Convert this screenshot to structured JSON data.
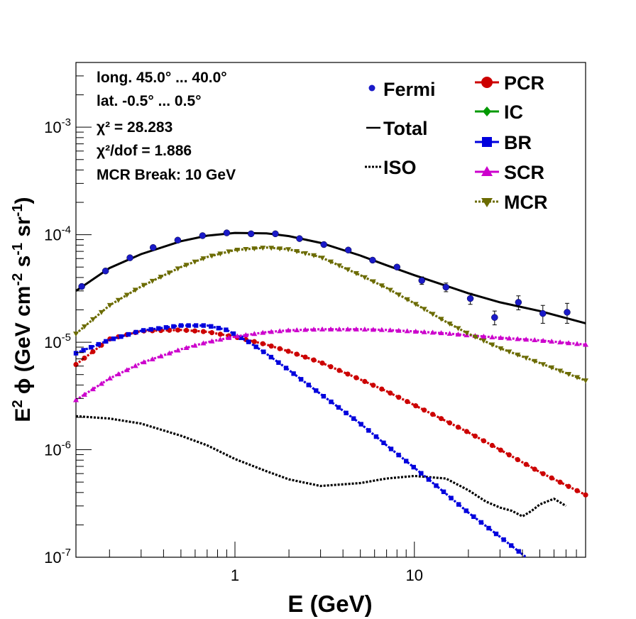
{
  "chart_data": {
    "type": "line",
    "x_scale": "log",
    "y_scale": "log",
    "xlim": [
      0.13,
      90
    ],
    "ylim": [
      1e-07,
      0.004
    ],
    "xlabel": "E (GeV)",
    "ylabel": "E² ϕ (GeV cm⁻² s⁻¹ sr⁻¹)",
    "x_ticks": [
      {
        "value": 1,
        "label": "1"
      },
      {
        "value": 10,
        "label": "10"
      }
    ],
    "y_ticks": [
      {
        "value": 1e-07,
        "base": "10",
        "exp": "-7"
      },
      {
        "value": 1e-06,
        "base": "10",
        "exp": "-6"
      },
      {
        "value": 1e-05,
        "base": "10",
        "exp": "-5"
      },
      {
        "value": 0.0001,
        "base": "10",
        "exp": "-4"
      },
      {
        "value": 0.001,
        "base": "10",
        "exp": "-3"
      }
    ],
    "annotations": [
      "long. 45.0° ... 40.0°",
      "lat. -0.5° ... 0.5°",
      "χ² = 28.283",
      "χ²/dof = 1.886",
      "MCR Break: 10 GeV"
    ],
    "legend_left": [
      "Fermi",
      "Total",
      "ISO"
    ],
    "legend_right": [
      "PCR",
      "IC",
      "BR",
      "SCR",
      "MCR"
    ],
    "fermi": {
      "name": "Fermi",
      "color": "#1a1ac8",
      "points": [
        {
          "x": 0.14,
          "y": 3.3e-05,
          "err": 0
        },
        {
          "x": 0.19,
          "y": 4.6e-05,
          "err": 0
        },
        {
          "x": 0.26,
          "y": 6.1e-05,
          "err": 0
        },
        {
          "x": 0.35,
          "y": 7.6e-05,
          "err": 0
        },
        {
          "x": 0.48,
          "y": 8.9e-05,
          "err": 0
        },
        {
          "x": 0.66,
          "y": 9.8e-05,
          "err": 0
        },
        {
          "x": 0.9,
          "y": 0.000104,
          "err": 0
        },
        {
          "x": 1.23,
          "y": 0.000102,
          "err": 0
        },
        {
          "x": 1.68,
          "y": 0.000102,
          "err": 0
        },
        {
          "x": 2.29,
          "y": 9.2e-05,
          "err": 0
        },
        {
          "x": 3.13,
          "y": 8.1e-05,
          "err": 0
        },
        {
          "x": 4.28,
          "y": 7.2e-05,
          "err": 0
        },
        {
          "x": 5.85,
          "y": 5.8e-05,
          "err": 0
        },
        {
          "x": 8.0,
          "y": 5e-05,
          "err": 0
        },
        {
          "x": 11.0,
          "y": 3.75e-05,
          "err": 3e-06
        },
        {
          "x": 15.0,
          "y": 3.25e-05,
          "err": 3e-06
        },
        {
          "x": 20.5,
          "y": 2.55e-05,
          "err": 3e-06
        },
        {
          "x": 28.0,
          "y": 1.7e-05,
          "err": 2.5e-06
        },
        {
          "x": 38.0,
          "y": 2.35e-05,
          "err": 3.5e-06
        },
        {
          "x": 52.0,
          "y": 1.85e-05,
          "err": 3.5e-06
        },
        {
          "x": 71.0,
          "y": 1.9e-05,
          "err": 4e-06
        }
      ]
    },
    "series": [
      {
        "name": "Total",
        "color": "#000000",
        "style": "solid",
        "marker": "none",
        "x": [
          0.13,
          0.2,
          0.3,
          0.5,
          0.7,
          1.0,
          1.5,
          2.0,
          3.0,
          5.0,
          7.0,
          10,
          15,
          20,
          30,
          50,
          90
        ],
        "y": [
          3e-05,
          4.9e-05,
          6.6e-05,
          8.7e-05,
          9.8e-05,
          0.000104,
          0.000103,
          9.7e-05,
          8.4e-05,
          6.4e-05,
          5.2e-05,
          4.2e-05,
          3.35e-05,
          2.85e-05,
          2.35e-05,
          1.95e-05,
          1.5e-05
        ]
      },
      {
        "name": "ISO",
        "color": "#000000",
        "style": "dotted",
        "marker": "none",
        "x": [
          0.13,
          0.2,
          0.3,
          0.5,
          0.7,
          1.0,
          1.5,
          2.0,
          3.0,
          5.0,
          7.0,
          10,
          15,
          20,
          25,
          30,
          35,
          40,
          45,
          50,
          60,
          70
        ],
        "y": [
          2.05e-06,
          1.95e-06,
          1.75e-06,
          1.35e-06,
          1.1e-06,
          8.2e-07,
          6.3e-07,
          5.3e-07,
          4.6e-07,
          4.9e-07,
          5.4e-07,
          5.7e-07,
          5.4e-07,
          4.2e-07,
          3.3e-07,
          2.9e-07,
          2.7e-07,
          2.4e-07,
          2.7e-07,
          3.1e-07,
          3.5e-07,
          3e-07
        ]
      },
      {
        "name": "PCR",
        "color": "#cc0000",
        "style": "dotted",
        "marker": "circle",
        "x": [
          0.13,
          0.2,
          0.3,
          0.5,
          0.7,
          1.0,
          1.5,
          2.0,
          3.0,
          5.0,
          7.0,
          10,
          15,
          20,
          30,
          50,
          90
        ],
        "y": [
          6.2e-06,
          1.07e-05,
          1.27e-05,
          1.3e-05,
          1.25e-05,
          1.12e-05,
          9.5e-06,
          8.2e-06,
          6.5e-06,
          4.5e-06,
          3.5e-06,
          2.6e-06,
          1.85e-06,
          1.45e-06,
          1e-06,
          6.2e-07,
          3.8e-07
        ]
      },
      {
        "name": "BR",
        "color": "#0000dd",
        "style": "dotted",
        "marker": "square",
        "x": [
          0.13,
          0.2,
          0.3,
          0.5,
          0.7,
          0.9,
          1.2,
          1.5,
          2.0,
          3.0,
          5.0,
          7.0,
          10,
          15,
          20,
          30,
          42
        ],
        "y": [
          7.9e-06,
          1.05e-05,
          1.28e-05,
          1.43e-05,
          1.43e-05,
          1.3e-05,
          1e-05,
          7.8e-06,
          5.5e-06,
          3.3e-06,
          1.75e-06,
          1.1e-06,
          6.8e-07,
          3.9e-07,
          2.6e-07,
          1.55e-07,
          1e-07
        ]
      },
      {
        "name": "SCR",
        "color": "#cc00cc",
        "style": "dotted",
        "marker": "triangle",
        "x": [
          0.13,
          0.2,
          0.3,
          0.5,
          0.7,
          1.0,
          1.5,
          2.0,
          3.0,
          5.0,
          7.0,
          10,
          15,
          20,
          30,
          50,
          90
        ],
        "y": [
          2.9e-06,
          4.6e-06,
          6.4e-06,
          8.6e-06,
          1e-05,
          1.13e-05,
          1.24e-05,
          1.29e-05,
          1.32e-05,
          1.32e-05,
          1.3e-05,
          1.26e-05,
          1.21e-05,
          1.16e-05,
          1.1e-05,
          1.04e-05,
          9.5e-06
        ]
      },
      {
        "name": "MCR",
        "color": "#6b6b00",
        "style": "dotted",
        "marker": "invtriangle",
        "x": [
          0.13,
          0.2,
          0.3,
          0.5,
          0.7,
          1.0,
          1.5,
          2.0,
          3.0,
          5.0,
          7.0,
          10,
          15,
          20,
          30,
          50,
          90
        ],
        "y": [
          1.2e-05,
          2.2e-05,
          3.3e-05,
          5e-05,
          6.2e-05,
          7.2e-05,
          7.6e-05,
          7.3e-05,
          6.2e-05,
          4.2e-05,
          3.2e-05,
          2.3e-05,
          1.55e-05,
          1.2e-05,
          8.8e-06,
          6.4e-06,
          4.4e-06
        ]
      },
      {
        "name": "IC",
        "color": "#009900",
        "style": "dotted",
        "marker": "diamond",
        "x": [],
        "y": []
      }
    ]
  }
}
